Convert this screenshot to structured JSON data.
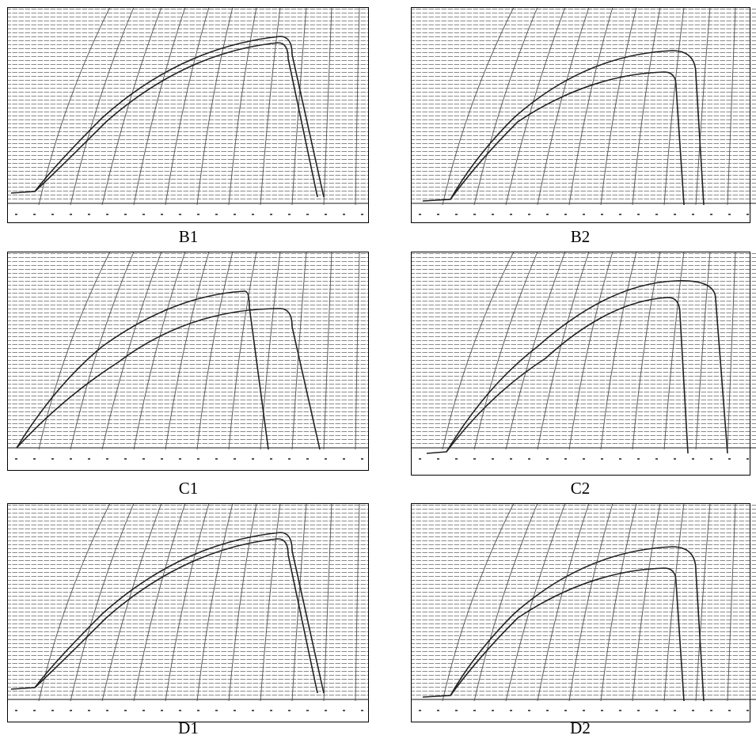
{
  "figure": {
    "panels": [
      {
        "caption": "B1"
      },
      {
        "caption": "B2"
      },
      {
        "caption": "C1"
      },
      {
        "caption": "C2"
      },
      {
        "caption": "D1"
      },
      {
        "caption": "D2"
      }
    ]
  }
}
